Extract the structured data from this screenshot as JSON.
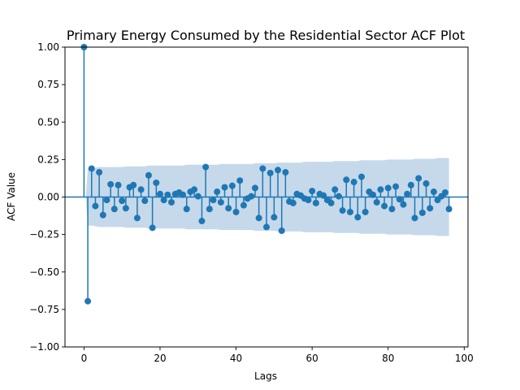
{
  "chart_data": {
    "type": "scatter",
    "title": "Primary Energy Consumed by the Residential Sector ACF Plot",
    "xlabel": "Lags",
    "ylabel": "ACF Value",
    "xlim": [
      -5,
      101
    ],
    "ylim": [
      -1.0,
      1.0
    ],
    "xticks": [
      0,
      20,
      40,
      60,
      80,
      100
    ],
    "yticks": [
      -1.0,
      -0.75,
      -0.5,
      -0.25,
      0.0,
      0.25,
      0.5,
      0.75,
      1.0
    ],
    "xtick_labels": [
      "0",
      "20",
      "40",
      "60",
      "80",
      "100"
    ],
    "ytick_labels": [
      "−1.00",
      "−0.75",
      "−0.50",
      "−0.25",
      "0.00",
      "0.25",
      "0.50",
      "0.75",
      "1.00"
    ],
    "grid": false,
    "colors": {
      "series": "#1f77b4",
      "band": "#c5d9eb"
    },
    "lags": [
      0,
      1,
      2,
      3,
      4,
      5,
      6,
      7,
      8,
      9,
      10,
      11,
      12,
      13,
      14,
      15,
      16,
      17,
      18,
      19,
      20,
      21,
      22,
      23,
      24,
      25,
      26,
      27,
      28,
      29,
      30,
      31,
      32,
      33,
      34,
      35,
      36,
      37,
      38,
      39,
      40,
      41,
      42,
      43,
      44,
      45,
      46,
      47,
      48,
      49,
      50,
      51,
      52,
      53,
      54,
      55,
      56,
      57,
      58,
      59,
      60,
      61,
      62,
      63,
      64,
      65,
      66,
      67,
      68,
      69,
      70,
      71,
      72,
      73,
      74,
      75,
      76,
      77,
      78,
      79,
      80,
      81,
      82,
      83,
      84,
      85,
      86,
      87,
      88,
      89,
      90,
      91,
      92,
      93,
      94,
      95,
      96
    ],
    "acf": [
      1.0,
      -0.695,
      0.19,
      -0.06,
      0.165,
      -0.12,
      -0.02,
      0.085,
      -0.08,
      0.08,
      -0.025,
      -0.075,
      0.065,
      0.08,
      -0.14,
      0.05,
      -0.025,
      0.145,
      -0.205,
      0.095,
      0.02,
      -0.02,
      0.015,
      -0.035,
      0.02,
      0.03,
      0.015,
      -0.08,
      0.035,
      0.05,
      0.005,
      -0.16,
      0.2,
      -0.08,
      -0.02,
      0.035,
      -0.035,
      0.065,
      -0.075,
      0.075,
      -0.1,
      0.11,
      -0.055,
      -0.01,
      0.005,
      0.06,
      -0.14,
      0.19,
      -0.2,
      0.16,
      -0.135,
      0.18,
      -0.225,
      0.165,
      -0.03,
      -0.04,
      0.02,
      0.01,
      -0.01,
      -0.02,
      0.04,
      -0.04,
      0.02,
      0.01,
      -0.02,
      -0.04,
      0.05,
      0.005,
      -0.09,
      0.115,
      -0.1,
      0.1,
      -0.135,
      0.135,
      -0.1,
      0.035,
      0.015,
      -0.035,
      0.05,
      -0.06,
      0.06,
      -0.08,
      0.07,
      -0.015,
      -0.05,
      0.02,
      0.08,
      -0.14,
      0.125,
      -0.105,
      0.09,
      -0.075,
      0.035,
      -0.02,
      0.005,
      0.03,
      -0.08
    ],
    "confint_upper": [
      0.0,
      0.19,
      0.19,
      0.195,
      0.2,
      0.2,
      0.2,
      0.2,
      0.2,
      0.2,
      0.2,
      0.205,
      0.205,
      0.205,
      0.205,
      0.205,
      0.205,
      0.21,
      0.21,
      0.21,
      0.21,
      0.21,
      0.21,
      0.21,
      0.21,
      0.21,
      0.21,
      0.215,
      0.215,
      0.215,
      0.215,
      0.215,
      0.215,
      0.215,
      0.215,
      0.215,
      0.22,
      0.22,
      0.22,
      0.22,
      0.22,
      0.22,
      0.22,
      0.22,
      0.22,
      0.225,
      0.225,
      0.225,
      0.225,
      0.225,
      0.225,
      0.23,
      0.23,
      0.23,
      0.23,
      0.23,
      0.23,
      0.23,
      0.235,
      0.235,
      0.235,
      0.235,
      0.235,
      0.235,
      0.235,
      0.235,
      0.24,
      0.24,
      0.24,
      0.24,
      0.24,
      0.24,
      0.24,
      0.245,
      0.245,
      0.245,
      0.245,
      0.245,
      0.245,
      0.245,
      0.25,
      0.25,
      0.25,
      0.25,
      0.25,
      0.25,
      0.25,
      0.255,
      0.255,
      0.255,
      0.255,
      0.255,
      0.255,
      0.26,
      0.26,
      0.26,
      0.26
    ]
  }
}
